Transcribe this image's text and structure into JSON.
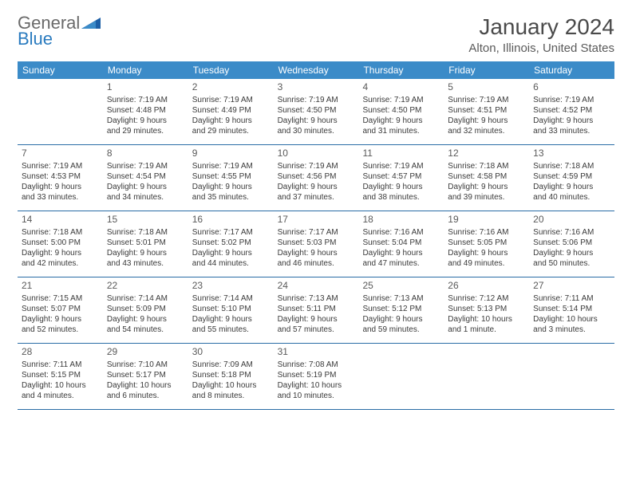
{
  "logo": {
    "general": "General",
    "blue": "Blue"
  },
  "title": "January 2024",
  "location": "Alton, Illinois, United States",
  "day_headers": [
    "Sunday",
    "Monday",
    "Tuesday",
    "Wednesday",
    "Thursday",
    "Friday",
    "Saturday"
  ],
  "colors": {
    "header_bg": "#3b8bc8",
    "header_text": "#ffffff",
    "row_border": "#2a6da6",
    "logo_blue": "#2a7bbf",
    "logo_gray": "#6a6a6a",
    "text": "#3a3a3a"
  },
  "weeks": [
    [
      {
        "num": "",
        "lines": []
      },
      {
        "num": "1",
        "lines": [
          "Sunrise: 7:19 AM",
          "Sunset: 4:48 PM",
          "Daylight: 9 hours",
          "and 29 minutes."
        ]
      },
      {
        "num": "2",
        "lines": [
          "Sunrise: 7:19 AM",
          "Sunset: 4:49 PM",
          "Daylight: 9 hours",
          "and 29 minutes."
        ]
      },
      {
        "num": "3",
        "lines": [
          "Sunrise: 7:19 AM",
          "Sunset: 4:50 PM",
          "Daylight: 9 hours",
          "and 30 minutes."
        ]
      },
      {
        "num": "4",
        "lines": [
          "Sunrise: 7:19 AM",
          "Sunset: 4:50 PM",
          "Daylight: 9 hours",
          "and 31 minutes."
        ]
      },
      {
        "num": "5",
        "lines": [
          "Sunrise: 7:19 AM",
          "Sunset: 4:51 PM",
          "Daylight: 9 hours",
          "and 32 minutes."
        ]
      },
      {
        "num": "6",
        "lines": [
          "Sunrise: 7:19 AM",
          "Sunset: 4:52 PM",
          "Daylight: 9 hours",
          "and 33 minutes."
        ]
      }
    ],
    [
      {
        "num": "7",
        "lines": [
          "Sunrise: 7:19 AM",
          "Sunset: 4:53 PM",
          "Daylight: 9 hours",
          "and 33 minutes."
        ]
      },
      {
        "num": "8",
        "lines": [
          "Sunrise: 7:19 AM",
          "Sunset: 4:54 PM",
          "Daylight: 9 hours",
          "and 34 minutes."
        ]
      },
      {
        "num": "9",
        "lines": [
          "Sunrise: 7:19 AM",
          "Sunset: 4:55 PM",
          "Daylight: 9 hours",
          "and 35 minutes."
        ]
      },
      {
        "num": "10",
        "lines": [
          "Sunrise: 7:19 AM",
          "Sunset: 4:56 PM",
          "Daylight: 9 hours",
          "and 37 minutes."
        ]
      },
      {
        "num": "11",
        "lines": [
          "Sunrise: 7:19 AM",
          "Sunset: 4:57 PM",
          "Daylight: 9 hours",
          "and 38 minutes."
        ]
      },
      {
        "num": "12",
        "lines": [
          "Sunrise: 7:18 AM",
          "Sunset: 4:58 PM",
          "Daylight: 9 hours",
          "and 39 minutes."
        ]
      },
      {
        "num": "13",
        "lines": [
          "Sunrise: 7:18 AM",
          "Sunset: 4:59 PM",
          "Daylight: 9 hours",
          "and 40 minutes."
        ]
      }
    ],
    [
      {
        "num": "14",
        "lines": [
          "Sunrise: 7:18 AM",
          "Sunset: 5:00 PM",
          "Daylight: 9 hours",
          "and 42 minutes."
        ]
      },
      {
        "num": "15",
        "lines": [
          "Sunrise: 7:18 AM",
          "Sunset: 5:01 PM",
          "Daylight: 9 hours",
          "and 43 minutes."
        ]
      },
      {
        "num": "16",
        "lines": [
          "Sunrise: 7:17 AM",
          "Sunset: 5:02 PM",
          "Daylight: 9 hours",
          "and 44 minutes."
        ]
      },
      {
        "num": "17",
        "lines": [
          "Sunrise: 7:17 AM",
          "Sunset: 5:03 PM",
          "Daylight: 9 hours",
          "and 46 minutes."
        ]
      },
      {
        "num": "18",
        "lines": [
          "Sunrise: 7:16 AM",
          "Sunset: 5:04 PM",
          "Daylight: 9 hours",
          "and 47 minutes."
        ]
      },
      {
        "num": "19",
        "lines": [
          "Sunrise: 7:16 AM",
          "Sunset: 5:05 PM",
          "Daylight: 9 hours",
          "and 49 minutes."
        ]
      },
      {
        "num": "20",
        "lines": [
          "Sunrise: 7:16 AM",
          "Sunset: 5:06 PM",
          "Daylight: 9 hours",
          "and 50 minutes."
        ]
      }
    ],
    [
      {
        "num": "21",
        "lines": [
          "Sunrise: 7:15 AM",
          "Sunset: 5:07 PM",
          "Daylight: 9 hours",
          "and 52 minutes."
        ]
      },
      {
        "num": "22",
        "lines": [
          "Sunrise: 7:14 AM",
          "Sunset: 5:09 PM",
          "Daylight: 9 hours",
          "and 54 minutes."
        ]
      },
      {
        "num": "23",
        "lines": [
          "Sunrise: 7:14 AM",
          "Sunset: 5:10 PM",
          "Daylight: 9 hours",
          "and 55 minutes."
        ]
      },
      {
        "num": "24",
        "lines": [
          "Sunrise: 7:13 AM",
          "Sunset: 5:11 PM",
          "Daylight: 9 hours",
          "and 57 minutes."
        ]
      },
      {
        "num": "25",
        "lines": [
          "Sunrise: 7:13 AM",
          "Sunset: 5:12 PM",
          "Daylight: 9 hours",
          "and 59 minutes."
        ]
      },
      {
        "num": "26",
        "lines": [
          "Sunrise: 7:12 AM",
          "Sunset: 5:13 PM",
          "Daylight: 10 hours",
          "and 1 minute."
        ]
      },
      {
        "num": "27",
        "lines": [
          "Sunrise: 7:11 AM",
          "Sunset: 5:14 PM",
          "Daylight: 10 hours",
          "and 3 minutes."
        ]
      }
    ],
    [
      {
        "num": "28",
        "lines": [
          "Sunrise: 7:11 AM",
          "Sunset: 5:15 PM",
          "Daylight: 10 hours",
          "and 4 minutes."
        ]
      },
      {
        "num": "29",
        "lines": [
          "Sunrise: 7:10 AM",
          "Sunset: 5:17 PM",
          "Daylight: 10 hours",
          "and 6 minutes."
        ]
      },
      {
        "num": "30",
        "lines": [
          "Sunrise: 7:09 AM",
          "Sunset: 5:18 PM",
          "Daylight: 10 hours",
          "and 8 minutes."
        ]
      },
      {
        "num": "31",
        "lines": [
          "Sunrise: 7:08 AM",
          "Sunset: 5:19 PM",
          "Daylight: 10 hours",
          "and 10 minutes."
        ]
      },
      {
        "num": "",
        "lines": []
      },
      {
        "num": "",
        "lines": []
      },
      {
        "num": "",
        "lines": []
      }
    ]
  ]
}
